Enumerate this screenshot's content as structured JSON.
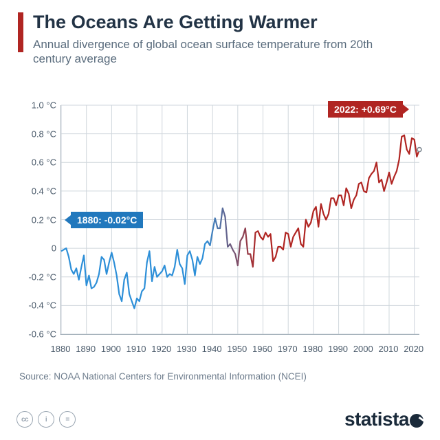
{
  "colors": {
    "accent": "#b02522",
    "title": "#223345",
    "subtitle": "#5a6c7d",
    "grid": "#cfd6dc",
    "axis": "#7a8a99",
    "line_cold": "#2d8fd8",
    "line_warm": "#b02522",
    "callout_blue": "#2178bd",
    "callout_red": "#b02522",
    "zero_line": "#6d7c85"
  },
  "header": {
    "title": "The Oceans Are Getting Warmer",
    "subtitle": "Annual divergence of global ocean surface temperature from 20th century average"
  },
  "chart": {
    "type": "line",
    "x_start": 1880,
    "x_end": 2022,
    "y_min": -0.6,
    "y_max": 1.0,
    "y_ticks": [
      -0.6,
      -0.4,
      -0.2,
      0,
      0.2,
      0.4,
      0.6,
      0.8,
      1.0
    ],
    "y_tick_labels": [
      "-0.6 °C",
      "-0.4 °C",
      "-0.2 °C",
      "0",
      "0.2 °C",
      "0.4 °C",
      "0.6 °C",
      "0.8 °C",
      "1.0 °C"
    ],
    "x_ticks": [
      1880,
      1890,
      1900,
      1910,
      1920,
      1930,
      1940,
      1950,
      1960,
      1970,
      1980,
      1990,
      2000,
      2010,
      2020
    ],
    "line_width": 2.2,
    "series": [
      -0.02,
      -0.01,
      0.0,
      -0.06,
      -0.15,
      -0.18,
      -0.14,
      -0.22,
      -0.13,
      -0.05,
      -0.26,
      -0.19,
      -0.28,
      -0.27,
      -0.24,
      -0.18,
      -0.06,
      -0.08,
      -0.18,
      -0.1,
      -0.03,
      -0.1,
      -0.19,
      -0.32,
      -0.37,
      -0.22,
      -0.17,
      -0.32,
      -0.37,
      -0.42,
      -0.35,
      -0.37,
      -0.3,
      -0.28,
      -0.1,
      -0.02,
      -0.23,
      -0.13,
      -0.2,
      -0.18,
      -0.16,
      -0.12,
      -0.2,
      -0.18,
      -0.19,
      -0.13,
      -0.01,
      -0.11,
      -0.14,
      -0.25,
      -0.05,
      -0.02,
      -0.08,
      -0.19,
      -0.06,
      -0.11,
      -0.07,
      0.03,
      0.05,
      0.02,
      0.12,
      0.21,
      0.14,
      0.14,
      0.28,
      0.22,
      0.01,
      0.03,
      -0.01,
      -0.04,
      -0.12,
      0.05,
      0.08,
      0.14,
      -0.04,
      -0.04,
      -0.13,
      0.11,
      0.12,
      0.08,
      0.06,
      0.11,
      0.08,
      0.1,
      -0.09,
      -0.06,
      0.01,
      0.01,
      -0.01,
      0.11,
      0.1,
      0.01,
      0.08,
      0.11,
      0.14,
      0.03,
      0.01,
      0.2,
      0.15,
      0.18,
      0.26,
      0.29,
      0.15,
      0.31,
      0.24,
      0.2,
      0.24,
      0.35,
      0.35,
      0.3,
      0.37,
      0.37,
      0.3,
      0.42,
      0.38,
      0.28,
      0.34,
      0.37,
      0.45,
      0.46,
      0.4,
      0.39,
      0.49,
      0.52,
      0.54,
      0.6,
      0.46,
      0.48,
      0.4,
      0.46,
      0.53,
      0.45,
      0.5,
      0.54,
      0.62,
      0.78,
      0.79,
      0.69,
      0.66,
      0.77,
      0.76,
      0.64,
      0.69
    ],
    "end_marker": {
      "color": "#808a93",
      "radius": 3
    },
    "callouts": {
      "start": {
        "text": "1880: -0.02°C"
      },
      "end": {
        "text": "2022: +0.69°C"
      }
    }
  },
  "source": "Source: NOAA National Centers for Environmental Information (NCEI)",
  "footer": {
    "cc_labels": [
      "cc",
      "i",
      "="
    ],
    "logo_text": "statista"
  }
}
